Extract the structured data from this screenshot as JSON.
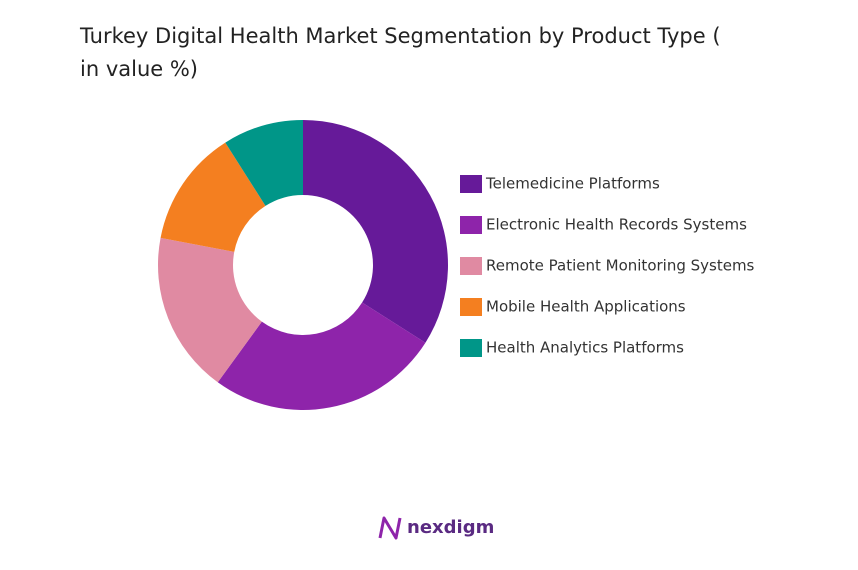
{
  "chart_data": {
    "type": "donut",
    "title": "Turkey Digital Health Market Segmentation by Product Type ( in value %)",
    "categories": [
      "Telemedicine Platforms",
      "Electronic Health Records Systems",
      "Remote Patient Monitoring Systems",
      "Mobile Health Applications",
      "Health Analytics Platforms"
    ],
    "values": [
      34,
      26,
      18,
      13,
      9
    ],
    "colors": [
      "#661a99",
      "#8e24aa",
      "#e08aa2",
      "#f47f20",
      "#009688"
    ],
    "legend": "right",
    "logo": "nexdigm"
  }
}
